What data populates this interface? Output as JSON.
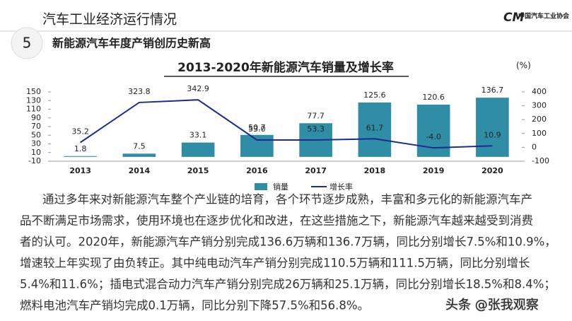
{
  "header": {
    "title": "汽车工业经济运行情况",
    "logo": "中国汽车工业协会",
    "section_number": "5",
    "section_title": "新能源汽车年度产销创历史新高"
  },
  "chart_data": {
    "type": "bar",
    "title": "2013-2020年新能源汽车销量及增长率",
    "annotation": "(%)",
    "categories": [
      "2013",
      "2014",
      "2015",
      "2016",
      "2017",
      "2018",
      "2019",
      "2020"
    ],
    "series": [
      {
        "name": "销量",
        "color": "#2f8ea6",
        "values": [
          1.8,
          7.5,
          33.1,
          50.7,
          77.7,
          125.6,
          120.6,
          136.7
        ]
      },
      {
        "name": "增长率",
        "color": "#1f2a8c",
        "axis": "y2",
        "values": [
          35.2,
          323.8,
          342.9,
          53.0,
          53.3,
          61.7,
          -4.0,
          10.9
        ],
        "value_labels": [
          "35.2",
          "323.8",
          "342.9",
          "53.0",
          "53.3",
          "61.7",
          "-4.0",
          "10.9"
        ]
      }
    ],
    "ylim": [
      -10,
      150
    ],
    "yticks": [
      -10,
      10,
      30,
      50,
      70,
      90,
      110,
      130,
      150
    ],
    "y2lim": [
      -100,
      400
    ],
    "y2ticks": [
      -100,
      0,
      100,
      200,
      300,
      400
    ],
    "legend": "bottom"
  },
  "paragraph": [
    "通过多年来对新能源汽车整个产业链的培育，各个环节逐步成熟，丰富和多元化的新能源汽车产",
    "品不断满足市场需求，使用环境也在逐步优化和改进，在这些措施之下，新能源汽车越来越受到消费",
    "者的认可。2020年，新能源汽车产销分别完成136.6万辆和136.7万辆，同比分别增长7.5%和10.9%，",
    "增速较上年实现了由负转正。其中纯电动汽车产销分别完成110.5万辆和111.5万辆，同比分别增长",
    "5.4%和11.6%；插电式混合动力汽车产销分别完成26万辆和25.1万辆，同比分别增长18.5%和8.4%；",
    "燃料电池汽车产销均完成0.1万辆，同比分别下降57.5%和56.8%。"
  ],
  "watermark": "头条 @张我观察"
}
